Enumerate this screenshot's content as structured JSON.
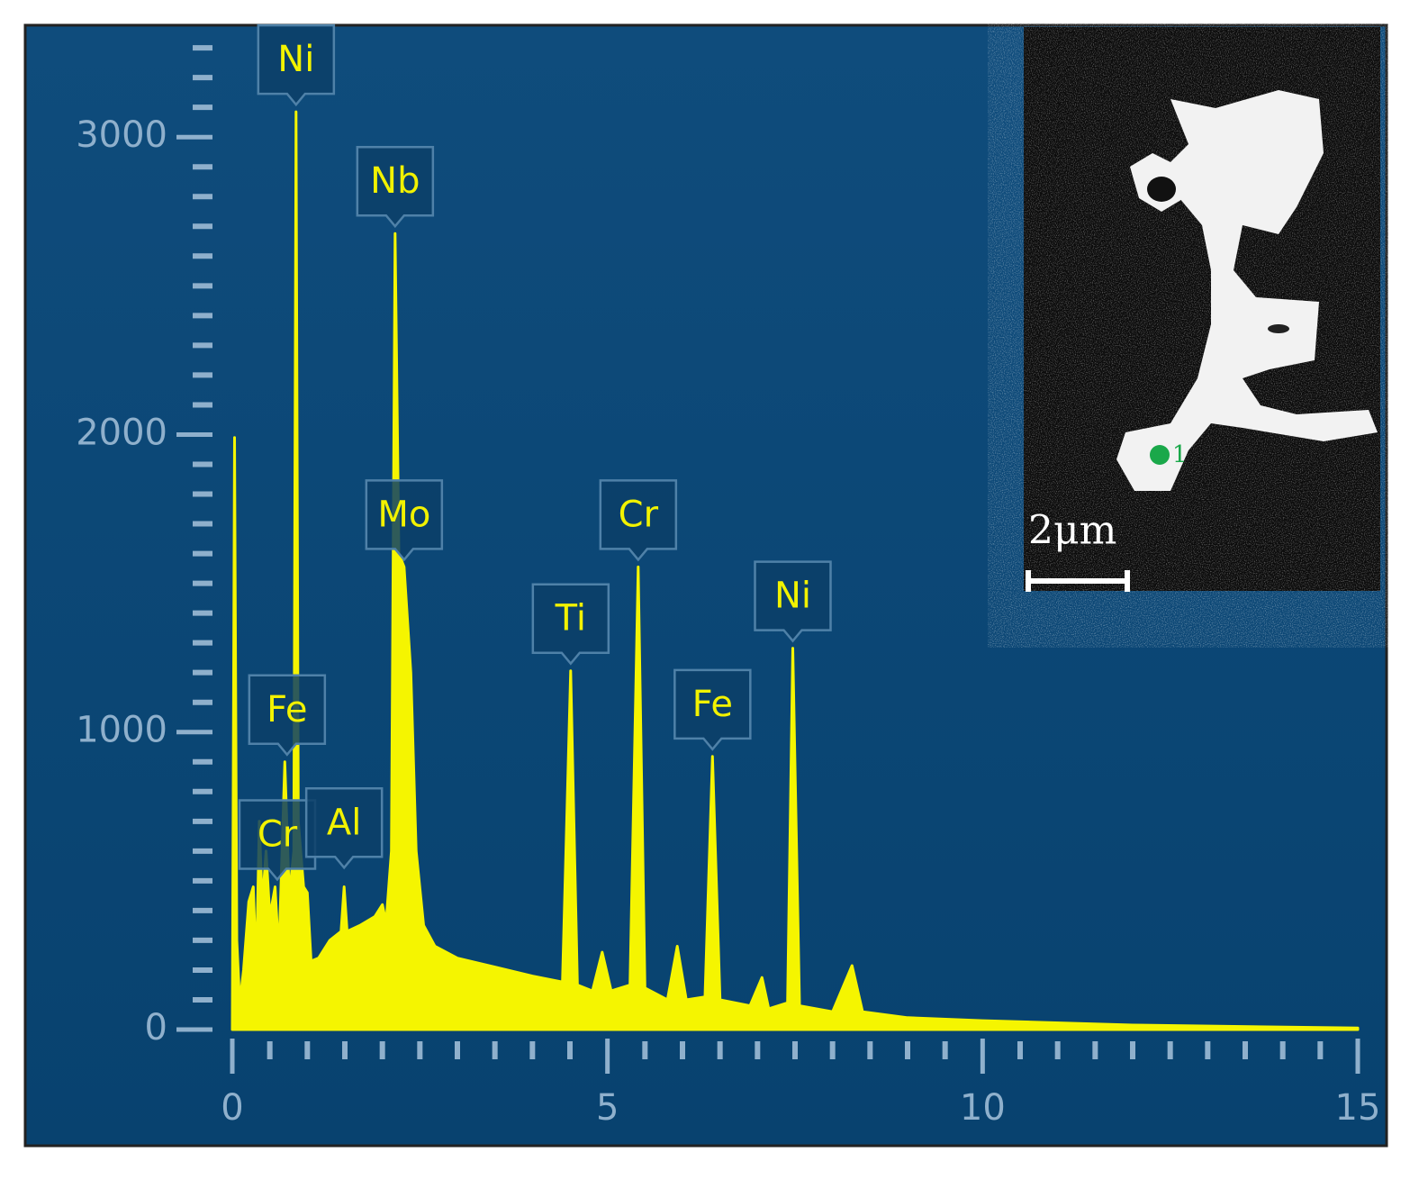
{
  "chart_data": {
    "type": "area",
    "color": "#f5f500",
    "xlim": [
      0,
      15
    ],
    "ylim": [
      0,
      3370
    ],
    "xticks": [
      0,
      5,
      10,
      15
    ],
    "yticks": [
      0,
      1000,
      2000,
      3000
    ],
    "xminorticks": [
      0.5,
      1,
      1.5,
      2,
      2.5,
      3,
      3.5,
      4,
      4.5,
      5.5,
      6,
      6.5,
      7,
      7.5,
      8,
      8.5,
      9,
      9.5,
      10.5,
      11,
      11.5,
      12,
      12.5,
      13,
      13.5,
      14,
      14.5
    ],
    "yminorticks": [
      100,
      200,
      300,
      400,
      500,
      600,
      700,
      800,
      900,
      1100,
      1200,
      1300,
      1400,
      1500,
      1600,
      1700,
      1800,
      1900,
      2100,
      2200,
      2300,
      2400,
      2500,
      2600,
      2700,
      2800,
      2900,
      3100,
      3200,
      3300
    ],
    "x": [
      0.0,
      0.03,
      0.06,
      0.1,
      0.15,
      0.22,
      0.28,
      0.32,
      0.36,
      0.4,
      0.45,
      0.5,
      0.57,
      0.62,
      0.7,
      0.76,
      0.82,
      0.85,
      0.88,
      0.95,
      1.0,
      1.05,
      1.15,
      1.3,
      1.45,
      1.49,
      1.53,
      1.7,
      1.9,
      2.0,
      2.05,
      2.12,
      2.17,
      2.22,
      2.29,
      2.38,
      2.45,
      2.55,
      2.7,
      3.0,
      3.5,
      4.0,
      4.4,
      4.51,
      4.6,
      4.8,
      4.93,
      5.05,
      5.3,
      5.41,
      5.5,
      5.8,
      5.93,
      6.05,
      6.3,
      6.4,
      6.5,
      6.9,
      7.06,
      7.15,
      7.4,
      7.47,
      7.56,
      8.0,
      8.26,
      8.4,
      9.0,
      10.0,
      12.0,
      15.0
    ],
    "values": [
      0,
      1990,
      300,
      90,
      200,
      430,
      480,
      200,
      700,
      420,
      600,
      380,
      480,
      250,
      900,
      450,
      600,
      3085,
      700,
      480,
      460,
      230,
      240,
      300,
      330,
      480,
      330,
      350,
      380,
      420,
      360,
      600,
      2676,
      1600,
      1555,
      1200,
      600,
      350,
      280,
      240,
      210,
      180,
      160,
      1206,
      150,
      130,
      260,
      130,
      150,
      1555,
      140,
      100,
      280,
      100,
      110,
      918,
      100,
      80,
      175,
      70,
      90,
      1282,
      80,
      60,
      215,
      60,
      40,
      30,
      15,
      5
    ],
    "annotations": [
      {
        "text": "Ni",
        "x": 0.85,
        "y": 3085
      },
      {
        "text": "Nb",
        "x": 2.17,
        "y": 2676
      },
      {
        "text": "Mo",
        "x": 2.29,
        "y": 1555
      },
      {
        "text": "Fe",
        "x": 0.73,
        "y": 900
      },
      {
        "text": "Cr",
        "x": 0.6,
        "y": 480
      },
      {
        "text": "Al",
        "x": 1.49,
        "y": 520
      },
      {
        "text": "Ti",
        "x": 4.51,
        "y": 1206
      },
      {
        "text": "Cr",
        "x": 5.41,
        "y": 1555
      },
      {
        "text": "Fe",
        "x": 6.4,
        "y": 918
      },
      {
        "text": "Ni",
        "x": 7.47,
        "y": 1282
      }
    ]
  },
  "inset": {
    "scale_label": "2μm",
    "point_label": "1"
  }
}
